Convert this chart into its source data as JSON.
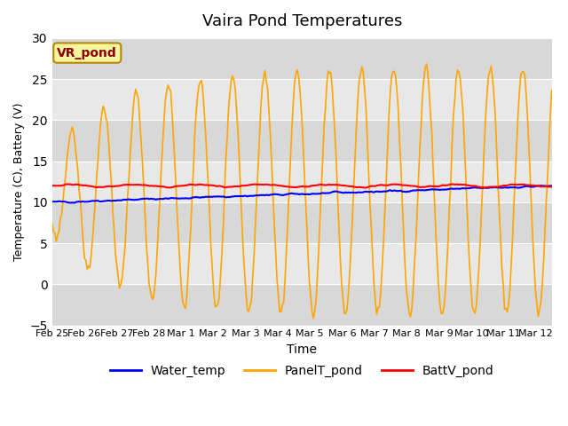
{
  "title": "Vaira Pond Temperatures",
  "xlabel": "Time",
  "ylabel": "Temperature (C), Battery (V)",
  "ylim": [
    -5,
    30
  ],
  "annotation": "VR_pond",
  "xtick_labels": [
    "Feb 25",
    "Feb 26",
    "Feb 27",
    "Feb 28",
    "Mar 1",
    "Mar 2",
    "Mar 3",
    "Mar 4",
    "Mar 5",
    "Mar 6",
    "Mar 7",
    "Mar 8",
    "Mar 9",
    "Mar 10",
    "Mar 11",
    "Mar 12"
  ],
  "legend": [
    "Water_temp",
    "PanelT_pond",
    "BattV_pond"
  ],
  "line_colors": [
    "blue",
    "orange",
    "red"
  ],
  "background_color": "#e8e8e8",
  "plot_bg": "#f0f0f0",
  "n_days": 15.5,
  "pts_per_day": 24
}
